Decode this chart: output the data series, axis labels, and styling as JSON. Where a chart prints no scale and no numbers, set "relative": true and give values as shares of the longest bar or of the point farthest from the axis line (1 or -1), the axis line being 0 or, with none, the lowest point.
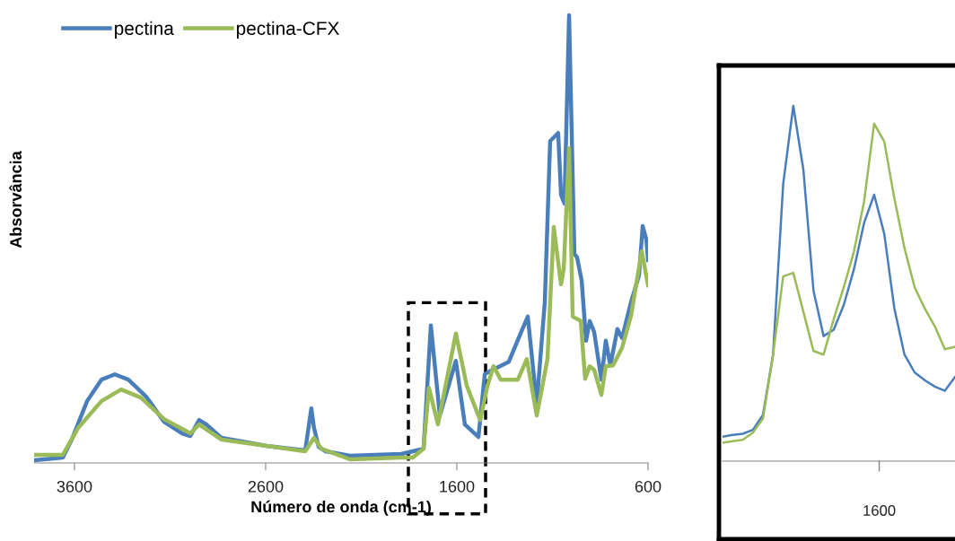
{
  "chart_data": [
    {
      "type": "line",
      "xlabel": "Número de onda (cm-1)",
      "ylabel": "Absorvância",
      "relative": true,
      "xlim": [
        3811,
        600
      ],
      "xticks": [
        3600,
        2600,
        1600,
        600
      ],
      "tick_labels": "x",
      "legend": "top left",
      "grid": false,
      "marker": "none",
      "line_style": "solid",
      "series": [
        {
          "name": "pectina",
          "color": "#4a7ebb",
          "x": [
            3811,
            3661,
            3614,
            3534,
            3459,
            3389,
            3318,
            3225,
            3131,
            3037,
            2994,
            2948,
            2910,
            2830,
            2595,
            2393,
            2361,
            2347,
            2323,
            2286,
            2159,
            1891,
            1830,
            1774,
            1736,
            1689,
            1605,
            1558,
            1487,
            1454,
            1422,
            1328,
            1267,
            1229,
            1182,
            1140,
            1112,
            1070,
            1055,
            1037,
            1013,
            985,
            971,
            947,
            924,
            905,
            882,
            844,
            821,
            797,
            760,
            736,
            689,
            647,
            628,
            609,
            600
          ],
          "values": [
            0.006,
            0.012,
            0.052,
            0.138,
            0.186,
            0.198,
            0.186,
            0.148,
            0.092,
            0.066,
            0.06,
            0.096,
            0.086,
            0.056,
            0.038,
            0.028,
            0.122,
            0.078,
            0.036,
            0.026,
            0.016,
            0.02,
            0.026,
            0.032,
            0.307,
            0.106,
            0.228,
            0.086,
            0.058,
            0.198,
            0.206,
            0.226,
            0.289,
            0.327,
            0.132,
            0.359,
            0.719,
            0.737,
            0.599,
            0.579,
            1.0,
            0.467,
            0.459,
            0.407,
            0.273,
            0.317,
            0.293,
            0.186,
            0.273,
            0.218,
            0.299,
            0.279,
            0.359,
            0.419,
            0.529,
            0.499,
            0.453
          ]
        },
        {
          "name": "pectina-CFX",
          "color": "#9bbb59",
          "x": [
            3811,
            3661,
            3581,
            3459,
            3356,
            3253,
            3131,
            2994,
            2948,
            2830,
            2393,
            2347,
            2309,
            2159,
            1891,
            1830,
            1774,
            1746,
            1699,
            1605,
            1548,
            1478,
            1440,
            1408,
            1370,
            1281,
            1234,
            1182,
            1126,
            1093,
            1079,
            1055,
            1041,
            1013,
            994,
            952,
            929,
            905,
            882,
            844,
            821,
            783,
            736,
            689,
            633,
            600
          ],
          "values": [
            0.018,
            0.018,
            0.078,
            0.138,
            0.164,
            0.146,
            0.098,
            0.066,
            0.086,
            0.052,
            0.026,
            0.056,
            0.032,
            0.008,
            0.012,
            0.012,
            0.032,
            0.168,
            0.086,
            0.289,
            0.172,
            0.096,
            0.172,
            0.216,
            0.186,
            0.186,
            0.232,
            0.106,
            0.232,
            0.527,
            0.479,
            0.399,
            0.433,
            0.703,
            0.327,
            0.317,
            0.188,
            0.216,
            0.208,
            0.152,
            0.216,
            0.218,
            0.257,
            0.329,
            0.473,
            0.397
          ]
        }
      ]
    },
    {
      "type": "line",
      "relative": true,
      "categories": [
        null,
        null,
        null,
        null,
        null,
        null,
        null,
        null,
        null,
        null,
        null,
        null,
        null,
        null,
        null,
        null,
        null,
        null,
        null,
        null,
        null,
        null,
        null,
        null
      ],
      "annotations": [
        "1600"
      ],
      "grid": false,
      "marker": "none",
      "line_style": "solid",
      "series": [
        {
          "color": "#4a7ebb",
          "values": [
            0.069,
            0.074,
            0.077,
            0.088,
            0.13,
            0.3,
            0.78,
            1.0,
            0.82,
            0.48,
            0.352,
            0.37,
            0.44,
            0.54,
            0.67,
            0.75,
            0.64,
            0.43,
            0.3,
            0.25,
            0.228,
            0.21,
            0.198,
            0.237
          ]
        },
        {
          "color": "#9bbb59",
          "values": [
            0.052,
            0.056,
            0.06,
            0.08,
            0.12,
            0.3,
            0.52,
            0.53,
            0.42,
            0.31,
            0.3,
            0.4,
            0.49,
            0.59,
            0.73,
            0.95,
            0.9,
            0.74,
            0.6,
            0.49,
            0.43,
            0.38,
            0.315,
            0.322
          ]
        }
      ]
    }
  ]
}
